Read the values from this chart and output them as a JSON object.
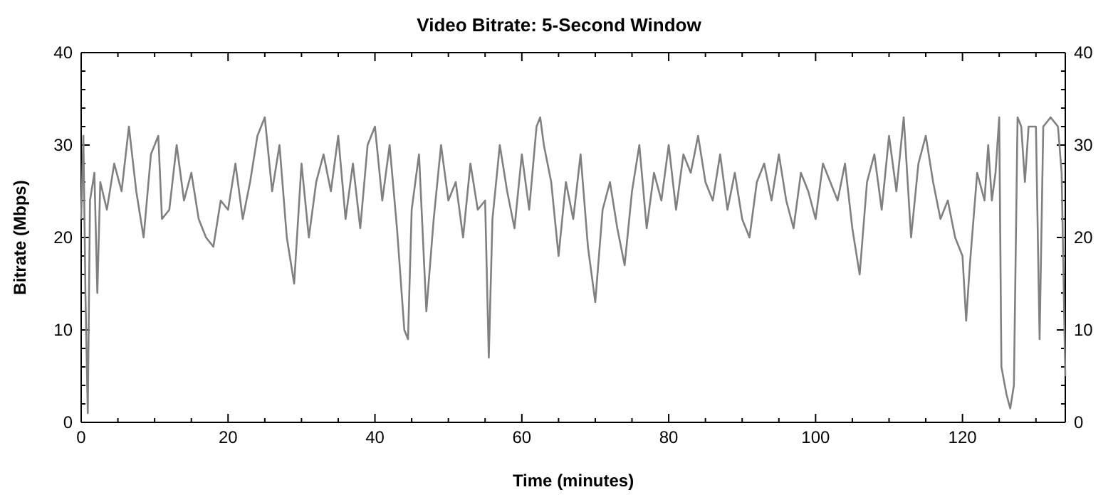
{
  "chart_data": {
    "type": "line",
    "title": "Video Bitrate: 5-Second Window",
    "xlabel": "Time (minutes)",
    "ylabel": "Bitrate (Mbps)",
    "xlim": [
      0,
      134
    ],
    "xticks": [
      0,
      {
        "value": 5,
        "label": null
      },
      {
        "value": 10,
        "label": null
      },
      {
        "value": 15,
        "label": null
      },
      20,
      {
        "value": 25,
        "label": null
      },
      {
        "value": 30,
        "label": null
      },
      {
        "value": 35,
        "label": null
      },
      40,
      {
        "value": 45,
        "label": null
      },
      {
        "value": 50,
        "label": null
      },
      {
        "value": 55,
        "label": null
      },
      60,
      {
        "value": 65,
        "label": null
      },
      {
        "value": 70,
        "label": null
      },
      {
        "value": 75,
        "label": null
      },
      80,
      {
        "value": 85,
        "label": null
      },
      {
        "value": 90,
        "label": null
      },
      {
        "value": 95,
        "label": null
      },
      100,
      {
        "value": 105,
        "label": null
      },
      {
        "value": 110,
        "label": null
      },
      {
        "value": 115,
        "label": null
      },
      120,
      {
        "value": 125,
        "label": null
      },
      {
        "value": 130,
        "label": null
      }
    ],
    "ylim": [
      0,
      40
    ],
    "yticks": [
      0,
      {
        "value": 2,
        "label": null
      },
      {
        "value": 4,
        "label": null
      },
      {
        "value": 6,
        "label": null
      },
      {
        "value": 8,
        "label": null
      },
      10,
      {
        "value": 12,
        "label": null
      },
      {
        "value": 14,
        "label": null
      },
      {
        "value": 16,
        "label": null
      },
      {
        "value": 18,
        "label": null
      },
      20,
      {
        "value": 22,
        "label": null
      },
      {
        "value": 24,
        "label": null
      },
      {
        "value": 26,
        "label": null
      },
      {
        "value": 28,
        "label": null
      },
      30,
      {
        "value": 32,
        "label": null
      },
      {
        "value": 34,
        "label": null
      },
      {
        "value": 36,
        "label": null
      },
      {
        "value": 38,
        "label": null
      },
      40
    ],
    "y2lim": [
      0,
      40
    ],
    "y2ticks": [
      0,
      {
        "value": 2,
        "label": null
      },
      {
        "value": 4,
        "label": null
      },
      {
        "value": 6,
        "label": null
      },
      {
        "value": 8,
        "label": null
      },
      10,
      {
        "value": 12,
        "label": null
      },
      {
        "value": 14,
        "label": null
      },
      {
        "value": 16,
        "label": null
      },
      {
        "value": 18,
        "label": null
      },
      20,
      {
        "value": 22,
        "label": null
      },
      {
        "value": 24,
        "label": null
      },
      {
        "value": 26,
        "label": null
      },
      {
        "value": 28,
        "label": null
      },
      30,
      {
        "value": 32,
        "label": null
      },
      {
        "value": 34,
        "label": null
      },
      {
        "value": 36,
        "label": null
      },
      {
        "value": 38,
        "label": null
      },
      40
    ],
    "grid": false,
    "marker": "none",
    "line_style": "solid",
    "series": [
      {
        "color": "#808080",
        "x": [
          0,
          0.3,
          0.6,
          0.9,
          1.2,
          1.8,
          2.2,
          2.6,
          3.5,
          4.5,
          5.5,
          6.5,
          7.5,
          8.5,
          9.5,
          10.5,
          11,
          12,
          13,
          14,
          15,
          16,
          17,
          18,
          19,
          20,
          21,
          22,
          23,
          24,
          25,
          26,
          27,
          28,
          29,
          30,
          31,
          32,
          33,
          34,
          35,
          36,
          37,
          38,
          39,
          40,
          41,
          42,
          43,
          44,
          44.5,
          45,
          46,
          47,
          48,
          49,
          50,
          51,
          52,
          53,
          54,
          55,
          55.5,
          56,
          57,
          58,
          59,
          60,
          61,
          62,
          62.5,
          63,
          64,
          65,
          66,
          67,
          68,
          69,
          70,
          71,
          72,
          73,
          74,
          75,
          76,
          77,
          78,
          79,
          80,
          81,
          82,
          83,
          84,
          85,
          86,
          87,
          88,
          89,
          90,
          91,
          92,
          93,
          94,
          95,
          96,
          97,
          98,
          99,
          100,
          101,
          102,
          103,
          104,
          105,
          106,
          107,
          108,
          109,
          110,
          111,
          112,
          113,
          114,
          115,
          116,
          117,
          118,
          119,
          120,
          120.5,
          121,
          122,
          123,
          123.5,
          124,
          124.5,
          125,
          125.3,
          126,
          126.5,
          127,
          127.5,
          128,
          128.5,
          129,
          130,
          130.5,
          131,
          132,
          133,
          133.5,
          134
        ],
        "values": [
          22,
          31,
          13,
          1,
          24,
          27,
          14,
          26,
          23,
          28,
          25,
          32,
          25,
          20,
          29,
          31,
          22,
          23,
          30,
          24,
          27,
          22,
          20,
          19,
          24,
          23,
          28,
          22,
          26,
          31,
          33,
          25,
          30,
          20,
          15,
          28,
          20,
          26,
          29,
          25,
          31,
          22,
          28,
          21,
          30,
          32,
          24,
          30,
          21,
          10,
          9,
          23,
          29,
          12,
          22,
          30,
          24,
          26,
          20,
          28,
          23,
          24,
          7,
          22,
          30,
          25,
          21,
          29,
          23,
          32,
          33,
          30,
          26,
          18,
          26,
          22,
          29,
          19,
          13,
          23,
          26,
          21,
          17,
          25,
          30,
          21,
          27,
          24,
          30,
          23,
          29,
          27,
          31,
          26,
          24,
          29,
          23,
          27,
          22,
          20,
          26,
          28,
          24,
          29,
          24,
          21,
          27,
          25,
          22,
          28,
          26,
          24,
          28,
          21,
          16,
          26,
          29,
          23,
          31,
          25,
          33,
          20,
          28,
          31,
          26,
          22,
          24,
          20,
          18,
          11,
          17,
          27,
          24,
          30,
          24,
          27,
          33,
          6,
          3,
          1.5,
          4,
          33,
          32,
          26,
          32,
          32,
          9,
          32,
          33,
          32,
          27,
          5
        ]
      }
    ]
  }
}
